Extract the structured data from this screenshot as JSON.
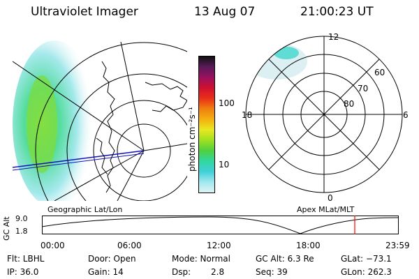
{
  "header": {
    "title": "Ultraviolet Imager",
    "date": "13 Aug 07",
    "time": "21:00:23 UT"
  },
  "colorbar": {
    "unit_label": "photon cm⁻²s⁻¹",
    "ticks": [
      "100",
      "10"
    ],
    "colors": [
      "#111111",
      "#5a1a5a",
      "#9a1060",
      "#d01030",
      "#e83018",
      "#f08010",
      "#f4b010",
      "#e8e820",
      "#a0e020",
      "#50d040",
      "#30d8a0",
      "#40d0d8",
      "#a0e8ee",
      "#dff4f6"
    ]
  },
  "left_map": {
    "caption": "Geographic Lat/Lon"
  },
  "right_map": {
    "caption": "Apex MLat/MLT",
    "mlt_labels": {
      "top": "12",
      "left": "18",
      "right": "6",
      "bottom": "0"
    },
    "lat_labels": [
      "60",
      "70",
      "80"
    ]
  },
  "timeline": {
    "ylabel": "GC Alt",
    "yticks": [
      "9.0",
      "1.8"
    ],
    "xticks": [
      "00:00",
      "06:00",
      "12:00",
      "18:00",
      "23:59"
    ],
    "marker_color": "#ff0000"
  },
  "info": {
    "row1": [
      "Flt: LBHL",
      "Door: Open",
      "Mode: Normal",
      "GC Alt: 6.3 Re",
      "GLat: −73.1"
    ],
    "row2": [
      "IP: 36.0",
      "Gain: 14",
      "Dsp:",
      "2.8",
      "Seq: 39",
      "GLon: 262.3"
    ]
  }
}
